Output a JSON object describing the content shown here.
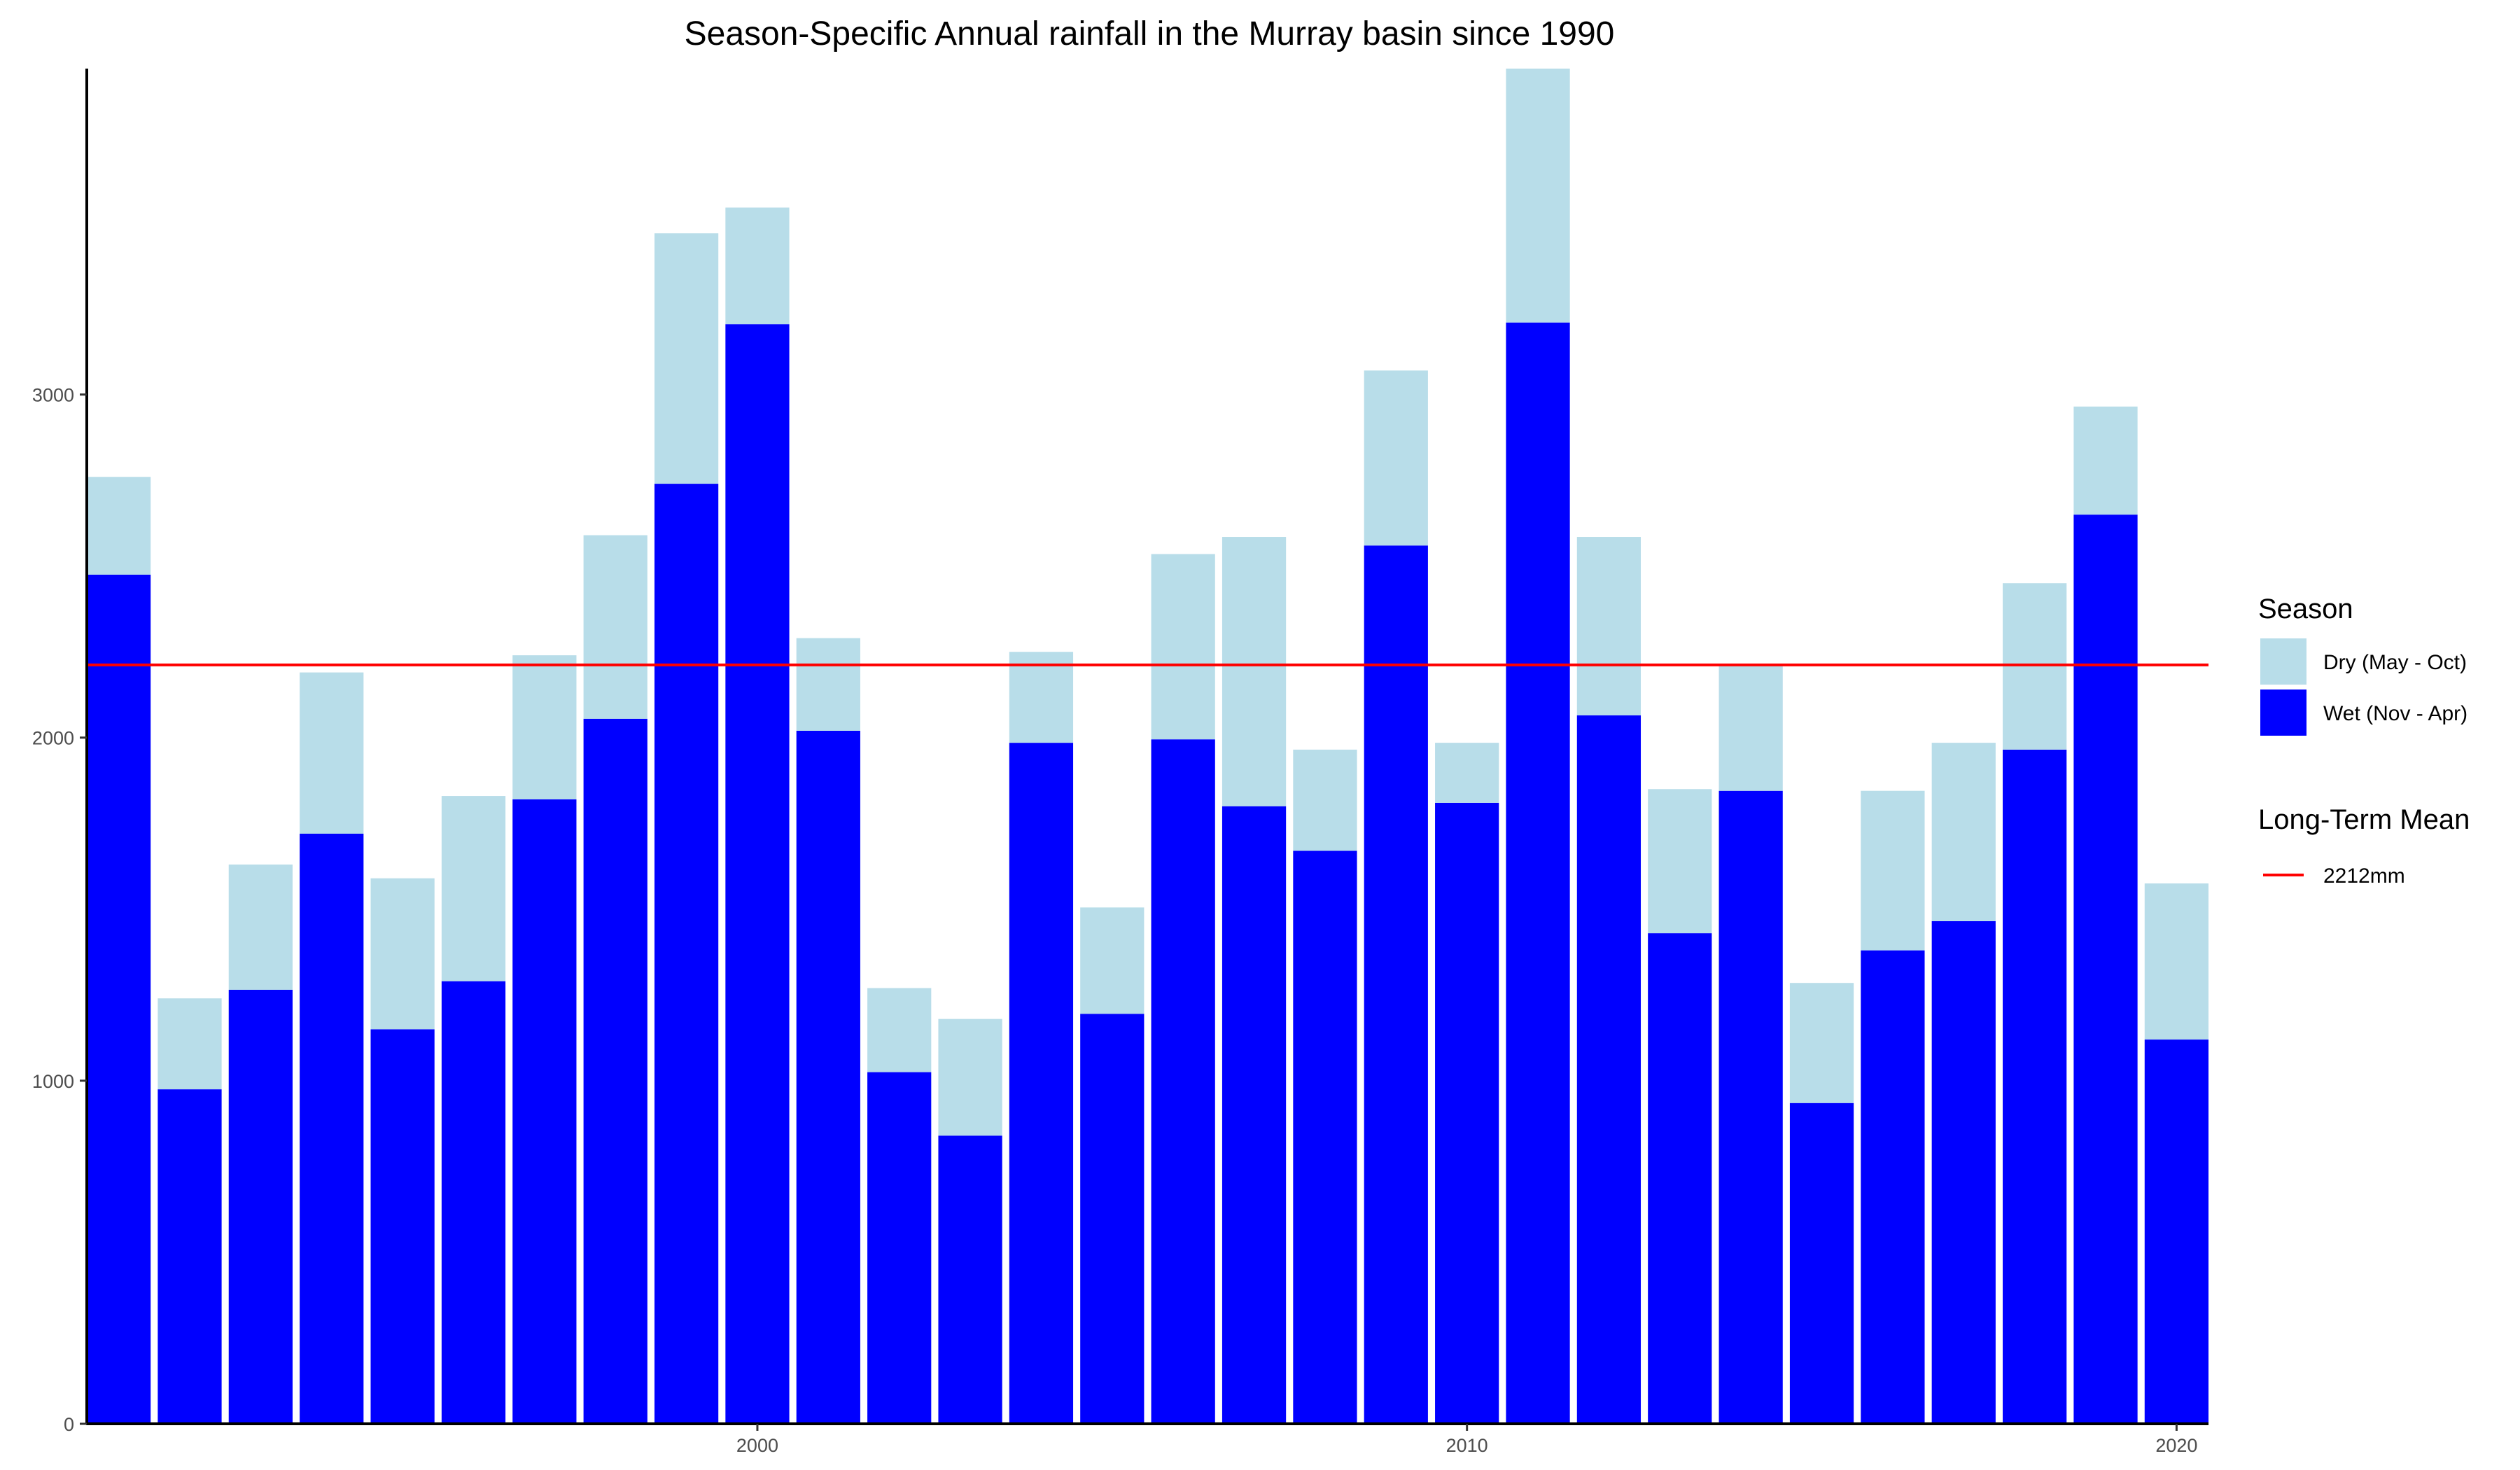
{
  "chart_data": {
    "type": "bar",
    "stacked": true,
    "title": "Season-Specific Annual rainfall in the Murray basin since 1990",
    "xlabel": "",
    "ylabel": "",
    "categories": [
      1991,
      1992,
      1993,
      1994,
      1995,
      1996,
      1997,
      1998,
      1999,
      2000,
      2001,
      2002,
      2003,
      2004,
      2005,
      2006,
      2007,
      2008,
      2009,
      2010,
      2011,
      2012,
      2013,
      2014,
      2015,
      2016,
      2017,
      2018,
      2019,
      2020
    ],
    "x_ticks": [
      2000,
      2010,
      2020
    ],
    "y_ticks": [
      0,
      1000,
      2000,
      3000
    ],
    "ylim": [
      0,
      3950
    ],
    "xlim": [
      1990.55,
      2020.45
    ],
    "grid": false,
    "series": [
      {
        "name": "Wet (Nov - Apr)",
        "color": "#0000FF",
        "values": [
          2475,
          975,
          1265,
          1720,
          1150,
          1290,
          1820,
          2055,
          2740,
          3205,
          2020,
          1025,
          840,
          1985,
          1195,
          1995,
          1800,
          1670,
          2560,
          1810,
          3210,
          2065,
          1430,
          1845,
          935,
          1380,
          1465,
          1965,
          2650,
          1120
        ]
      },
      {
        "name": "Dry (May - Oct)",
        "color": "#B8DDE9",
        "values": [
          285,
          265,
          365,
          470,
          440,
          540,
          420,
          535,
          730,
          340,
          270,
          245,
          340,
          265,
          310,
          540,
          785,
          295,
          510,
          175,
          740,
          520,
          420,
          370,
          350,
          465,
          520,
          485,
          315,
          455
        ]
      }
    ],
    "reference_line": {
      "value": 2212,
      "color": "#FF0000"
    },
    "legend": {
      "position": "right",
      "season_title": "Season",
      "season_entries": [
        {
          "label": "Dry (May - Oct)",
          "color": "#B8DDE9"
        },
        {
          "label": "Wet (Nov - Apr)",
          "color": "#0000FF"
        }
      ],
      "mean_title": "Long-Term Mean",
      "mean_label": "2212mm",
      "mean_color": "#FF0000"
    }
  }
}
